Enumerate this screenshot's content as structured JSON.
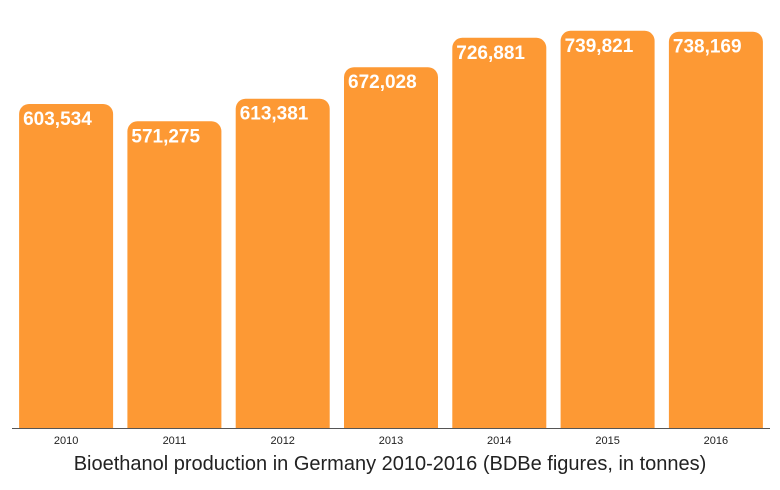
{
  "colors": {
    "bar": "#fd9934",
    "baseline": "#555555"
  },
  "chart_data": {
    "type": "bar",
    "title": "Bioethanol production in Germany 2010-2016 (BDBe figures, in tonnes)",
    "xlabel": "",
    "ylabel": "",
    "categories": [
      "2010",
      "2011",
      "2012",
      "2013",
      "2014",
      "2015",
      "2016"
    ],
    "values": [
      603534,
      571275,
      613381,
      672028,
      726881,
      739821,
      738169
    ],
    "value_labels": [
      "603,534",
      "571,275",
      "613,381",
      "672,028",
      "726,881",
      "739,821",
      "738,169"
    ],
    "ylim": [
      0,
      760000
    ],
    "grid": false,
    "legend": "none"
  }
}
